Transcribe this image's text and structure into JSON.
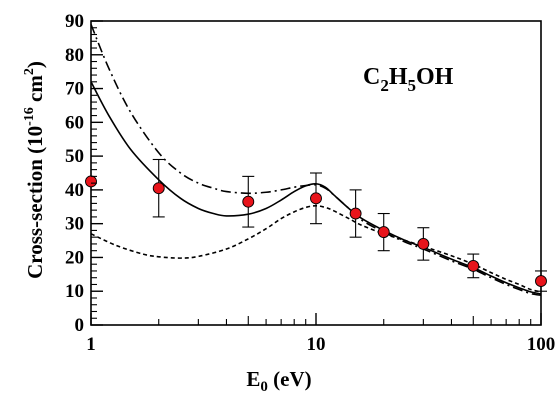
{
  "chart_data": {
    "type": "line",
    "title": "",
    "annotation": {
      "parts": [
        "C",
        "2",
        "H",
        "5",
        "OH"
      ]
    },
    "xlabel": {
      "main": "E",
      "sub": "0",
      "rest": " (eV)"
    },
    "ylabel": {
      "main": "Cross-section (10",
      "exp": "-16",
      "unit": " cm",
      "unit_exp": "2",
      "close": ")"
    },
    "xscale": "log",
    "xlim": [
      1,
      100
    ],
    "ylim": [
      0,
      90
    ],
    "xticks": [
      {
        "value": 1,
        "label": "1"
      },
      {
        "value": 10,
        "label": "10"
      },
      {
        "value": 100,
        "label": "100"
      }
    ],
    "yticks": [
      {
        "value": 0,
        "label": "0"
      },
      {
        "value": 10,
        "label": "10"
      },
      {
        "value": 20,
        "label": "20"
      },
      {
        "value": 30,
        "label": "30"
      },
      {
        "value": 40,
        "label": "40"
      },
      {
        "value": 50,
        "label": "50"
      },
      {
        "value": 60,
        "label": "60"
      },
      {
        "value": 70,
        "label": "70"
      },
      {
        "value": 80,
        "label": "80"
      },
      {
        "value": 90,
        "label": "90"
      }
    ],
    "grid": false,
    "series": [
      {
        "style": "solid",
        "x": [
          1,
          1.2,
          1.5,
          2,
          2.5,
          3,
          3.5,
          4,
          5,
          6,
          7,
          8,
          9,
          10,
          11,
          12,
          14,
          16,
          20,
          25,
          30,
          40,
          50,
          60,
          70,
          80,
          90,
          100
        ],
        "y": [
          72,
          62,
          52,
          43,
          37.5,
          34.5,
          33,
          32.3,
          32.8,
          34.5,
          37,
          39.5,
          41.2,
          41.8,
          40.8,
          38.5,
          34.5,
          31.5,
          28,
          25,
          23,
          19.5,
          17,
          14.5,
          12.5,
          11,
          9.8,
          9.2
        ]
      },
      {
        "style": "dash-dot",
        "x": [
          1,
          1.2,
          1.5,
          2,
          2.5,
          3,
          3.5,
          4,
          5,
          6,
          7,
          8,
          9,
          10,
          11,
          12,
          14,
          16,
          20,
          25,
          30,
          40,
          50,
          60,
          70,
          80,
          90,
          100
        ],
        "y": [
          89,
          76,
          63,
          51,
          45,
          42,
          40.5,
          39.5,
          39,
          39.3,
          40,
          40.8,
          41.3,
          41.5,
          40.5,
          38.5,
          34.5,
          31,
          27.5,
          24.5,
          22.5,
          19,
          16.5,
          14,
          12,
          10.5,
          9.3,
          8.8
        ]
      },
      {
        "style": "dotted",
        "x": [
          1,
          1.3,
          1.7,
          2,
          2.5,
          3,
          4,
          5,
          6,
          7,
          8,
          9,
          10,
          11,
          12,
          14,
          16,
          20,
          25,
          30,
          40,
          50,
          60,
          70,
          80,
          90,
          100
        ],
        "y": [
          27,
          23.5,
          21,
          20.2,
          19.8,
          20.3,
          22.5,
          25.5,
          28.5,
          31.5,
          33.5,
          34.8,
          35.3,
          34.8,
          33.8,
          31.5,
          29.5,
          27,
          25,
          23.3,
          20.5,
          18,
          15.5,
          13.5,
          12,
          10.5,
          9.8
        ]
      }
    ],
    "measurements": {
      "marker_color": "#e8141b",
      "points": [
        {
          "x": 1,
          "y": 42.5,
          "err": 0
        },
        {
          "x": 2,
          "y": 40.5,
          "err": 8.5
        },
        {
          "x": 5,
          "y": 36.5,
          "err": 7.5
        },
        {
          "x": 10,
          "y": 37.5,
          "err": 7.5
        },
        {
          "x": 15,
          "y": 33,
          "err": 7
        },
        {
          "x": 20,
          "y": 27.5,
          "err": 5.5
        },
        {
          "x": 30,
          "y": 24,
          "err": 4.8
        },
        {
          "x": 50,
          "y": 17.5,
          "err": 3.5
        },
        {
          "x": 100,
          "y": 13,
          "err": 3
        }
      ]
    }
  }
}
